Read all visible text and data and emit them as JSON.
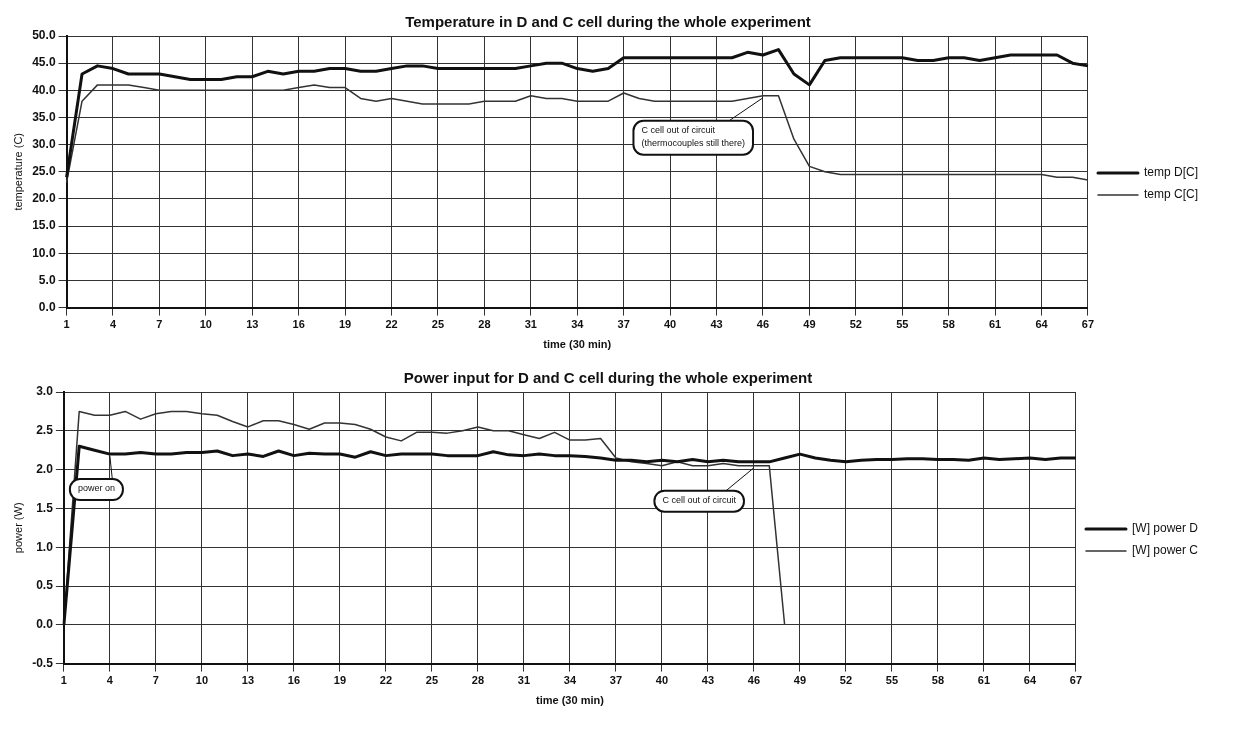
{
  "chart_data": [
    {
      "type": "line",
      "title": "Temperature in D and C cell during the whole experiment",
      "xlabel": "time (30 min)",
      "ylabel": "temperature (C)",
      "categories": [
        "1",
        null,
        null,
        "4",
        null,
        null,
        "7",
        null,
        null,
        "10",
        null,
        null,
        "13",
        null,
        null,
        "16",
        null,
        null,
        "19",
        null,
        null,
        "22",
        null,
        null,
        "25",
        null,
        null,
        "28",
        null,
        null,
        "31",
        null,
        null,
        "34",
        null,
        null,
        "37",
        null,
        null,
        "40",
        null,
        null,
        "43",
        null,
        null,
        "46",
        null,
        null,
        "49",
        null,
        null,
        "52",
        null,
        null,
        "55",
        null,
        null,
        "58",
        null,
        null,
        "61",
        null,
        null,
        "64",
        null,
        null,
        "67"
      ],
      "series": [
        {
          "name": "temp D[C]",
          "color": "#111111",
          "values": [
            24,
            43,
            44.5,
            44,
            43,
            43,
            43,
            42.5,
            42,
            42,
            42,
            42.5,
            42.5,
            43.5,
            43,
            43.5,
            43.5,
            44,
            44,
            43.5,
            43.5,
            44,
            44.5,
            44.5,
            44,
            44,
            44,
            44,
            44,
            44,
            44.5,
            45,
            45,
            44,
            43.5,
            44,
            46,
            46,
            46,
            46,
            46,
            46,
            46,
            46,
            47,
            46.5,
            47.5,
            43,
            41,
            45.5,
            46,
            46,
            46,
            46,
            46,
            45.5,
            45.5,
            46,
            46,
            45.5,
            46,
            46.5,
            46.5,
            46.5,
            46.5,
            45,
            44.5
          ]
        },
        {
          "name": "temp C[C]",
          "color": "#333333",
          "values": [
            23,
            38,
            41,
            41,
            41,
            40.5,
            40,
            40,
            40,
            40,
            40,
            40,
            40,
            40,
            40,
            40.5,
            41,
            40.5,
            40.5,
            38.5,
            38,
            38.5,
            38,
            37.5,
            37.5,
            37.5,
            37.5,
            38,
            38,
            38,
            39,
            38.5,
            38.5,
            38,
            38,
            38,
            39.5,
            38.5,
            38,
            38,
            38,
            38,
            38,
            38,
            38.5,
            39,
            39,
            31,
            26,
            25,
            24.5,
            24.5,
            24.5,
            24.5,
            24.5,
            24.5,
            24.5,
            24.5,
            24.5,
            24.5,
            24.5,
            24.5,
            24.5,
            24.5,
            24,
            24,
            23.5
          ]
        }
      ],
      "ylim": [
        0,
        50
      ],
      "yticks": [
        {
          "value": 0,
          "label": "0.0"
        },
        {
          "value": 5,
          "label": "5.0"
        },
        {
          "value": 10,
          "label": "10.0"
        },
        {
          "value": 15,
          "label": "15.0"
        },
        {
          "value": 20,
          "label": "20.0"
        },
        {
          "value": 25,
          "label": "25.0"
        },
        {
          "value": 30,
          "label": "30.0"
        },
        {
          "value": 35,
          "label": "35.0"
        },
        {
          "value": 40,
          "label": "40.0"
        },
        {
          "value": 45,
          "label": "45.0"
        },
        {
          "value": 50,
          "label": "50.0"
        }
      ],
      "grid": true,
      "legend": "right",
      "marker": "none",
      "annotations": [
        {
          "text": "C cell out of circuit (thermocouples still there)",
          "x": "46",
          "y": 39
        }
      ]
    },
    {
      "type": "line",
      "title": "Power input for D and C cell during the whole experiment",
      "xlabel": "time (30 min)",
      "ylabel": "power (W)",
      "categories": [
        "1",
        null,
        null,
        "4",
        null,
        null,
        "7",
        null,
        null,
        "10",
        null,
        null,
        "13",
        null,
        null,
        "16",
        null,
        null,
        "19",
        null,
        null,
        "22",
        null,
        null,
        "25",
        null,
        null,
        "28",
        null,
        null,
        "31",
        null,
        null,
        "34",
        null,
        null,
        "37",
        null,
        null,
        "40",
        null,
        null,
        "43",
        null,
        null,
        "46",
        null,
        null,
        "49",
        null,
        null,
        "52",
        null,
        null,
        "55",
        null,
        null,
        "58",
        null,
        null,
        "61",
        null,
        null,
        "64",
        null,
        null,
        "67"
      ],
      "series": [
        {
          "name": "[W] power D",
          "color": "#111111",
          "values": [
            0,
            2.3,
            2.25,
            2.2,
            2.2,
            2.22,
            2.2,
            2.2,
            2.22,
            2.22,
            2.24,
            2.18,
            2.2,
            2.17,
            2.24,
            2.18,
            2.21,
            2.2,
            2.2,
            2.16,
            2.23,
            2.18,
            2.2,
            2.2,
            2.2,
            2.18,
            2.18,
            2.18,
            2.23,
            2.19,
            2.18,
            2.2,
            2.18,
            2.18,
            2.17,
            2.15,
            2.12,
            2.12,
            2.1,
            2.12,
            2.1,
            2.13,
            2.1,
            2.12,
            2.1,
            2.1,
            2.1,
            2.15,
            2.2,
            2.15,
            2.12,
            2.1,
            2.12,
            2.13,
            2.13,
            2.14,
            2.14,
            2.13,
            2.13,
            2.12,
            2.15,
            2.13,
            2.14,
            2.15,
            2.13,
            2.15,
            2.15
          ]
        },
        {
          "name": "[W] power C",
          "color": "#333333",
          "values": [
            0,
            2.75,
            2.7,
            2.7,
            2.75,
            2.65,
            2.72,
            2.75,
            2.75,
            2.72,
            2.7,
            2.62,
            2.55,
            2.63,
            2.63,
            2.58,
            2.52,
            2.6,
            2.6,
            2.58,
            2.52,
            2.42,
            2.37,
            2.48,
            2.48,
            2.47,
            2.5,
            2.55,
            2.5,
            2.5,
            2.45,
            2.4,
            2.48,
            2.38,
            2.38,
            2.4,
            2.15,
            2.1,
            2.08,
            2.05,
            2.1,
            2.05,
            2.05,
            2.08,
            2.05,
            2.05,
            2.05,
            0,
            null,
            null,
            null,
            null,
            null,
            null,
            null,
            null,
            null,
            null,
            null,
            null,
            null,
            null,
            null,
            null,
            null,
            null,
            null
          ]
        }
      ],
      "ylim": [
        -0.5,
        3
      ],
      "yticks": [
        {
          "value": -0.5,
          "label": "-0.5"
        },
        {
          "value": 0,
          "label": "0.0"
        },
        {
          "value": 0.5,
          "label": "0.5"
        },
        {
          "value": 1,
          "label": "1.0"
        },
        {
          "value": 1.5,
          "label": "1.5"
        },
        {
          "value": 2,
          "label": "2.0"
        },
        {
          "value": 2.5,
          "label": "2.5"
        },
        {
          "value": 3,
          "label": "3.0"
        }
      ],
      "grid": true,
      "legend": "right",
      "marker": "none",
      "annotations": [
        {
          "text": "power on",
          "x": "4",
          "y": 2.2
        },
        {
          "text": "C cell out of circuit",
          "x": "46",
          "y": 2.05
        }
      ]
    }
  ]
}
